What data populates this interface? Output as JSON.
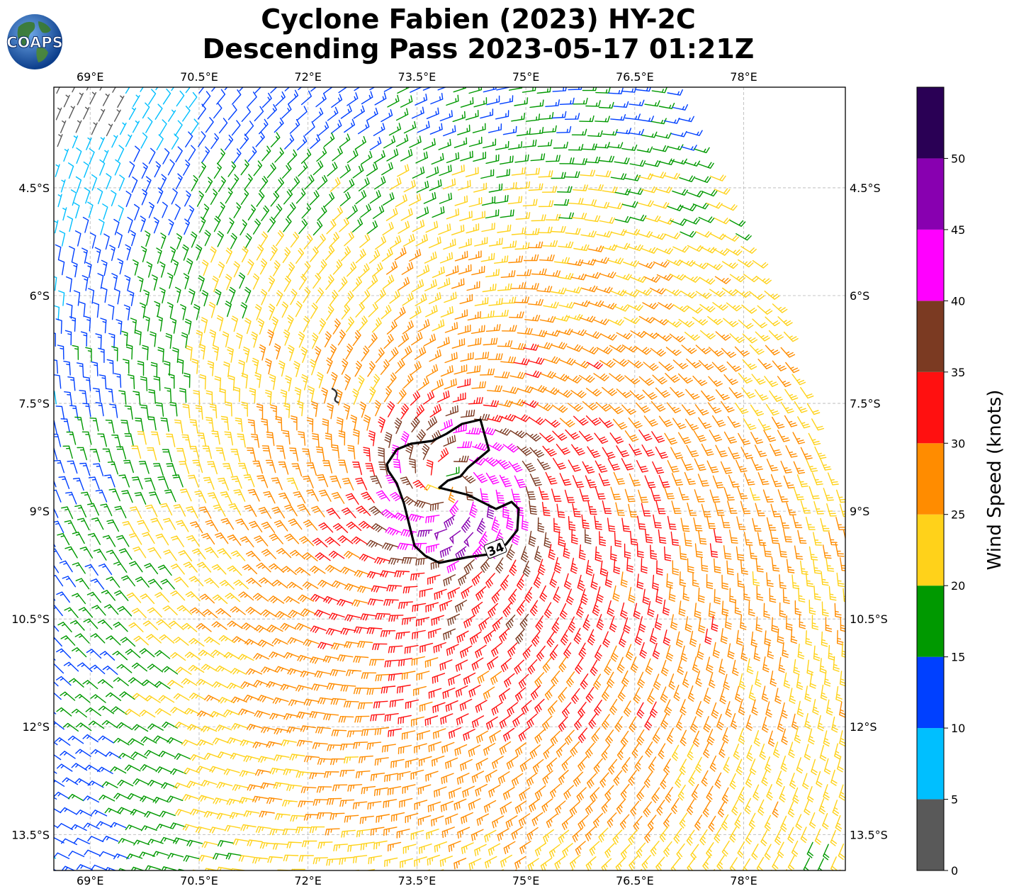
{
  "title_line1": "Cyclone Fabien (2023) HY-2C",
  "title_line2": "Descending Pass 2023-05-17 01:21Z",
  "logo_text": "COAPS",
  "map": {
    "lon_range": [
      68.5,
      79.4
    ],
    "lat_range": [
      -14.0,
      -3.1
    ],
    "lon_ticks": [
      "69°E",
      "70.5°E",
      "72°E",
      "73.5°E",
      "75°E",
      "76.5°E",
      "78°E"
    ],
    "lat_ticks": [
      "4.5°S",
      "6°S",
      "7.5°S",
      "9°S",
      "10.5°S",
      "12°S",
      "13.5°S"
    ],
    "storm_center": {
      "lon": 73.9,
      "lat": -8.6
    },
    "contour_label": "34",
    "contour_color": "#000000",
    "gridlines": true
  },
  "colorbar": {
    "label": "Wind Speed (knots)",
    "ticks": [
      "0",
      "5",
      "10",
      "15",
      "20",
      "25",
      "30",
      "35",
      "40",
      "45",
      "50"
    ],
    "bins": [
      {
        "min": 0,
        "max": 5,
        "color": "#595959"
      },
      {
        "min": 5,
        "max": 10,
        "color": "#00bfff"
      },
      {
        "min": 10,
        "max": 15,
        "color": "#0040ff"
      },
      {
        "min": 15,
        "max": 20,
        "color": "#009900"
      },
      {
        "min": 20,
        "max": 25,
        "color": "#ffd21a"
      },
      {
        "min": 25,
        "max": 30,
        "color": "#ff8c00"
      },
      {
        "min": 30,
        "max": 35,
        "color": "#ff1010"
      },
      {
        "min": 35,
        "max": 40,
        "color": "#7b3a22"
      },
      {
        "min": 40,
        "max": 45,
        "color": "#ff00ff"
      },
      {
        "min": 45,
        "max": 50,
        "color": "#8800b0"
      },
      {
        "min": 50,
        "max": 55,
        "color": "#2a0055"
      }
    ]
  }
}
